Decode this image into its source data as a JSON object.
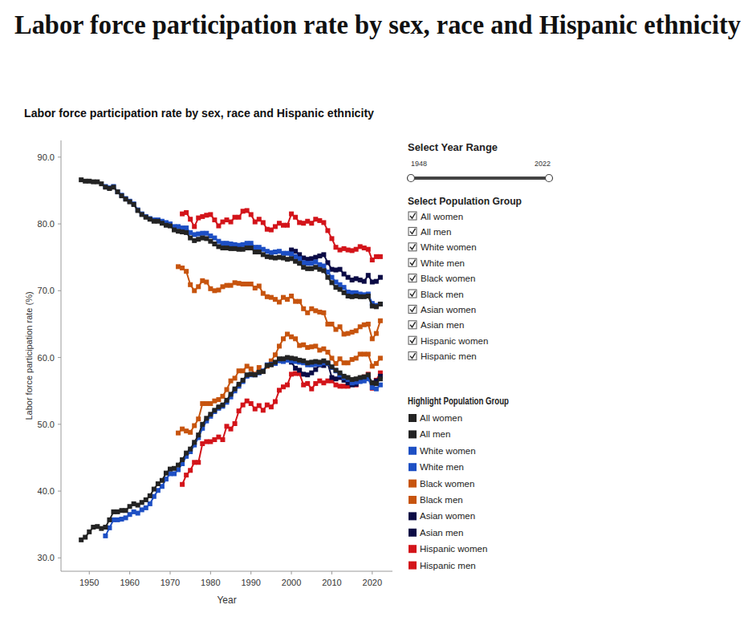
{
  "chart_data": {
    "type": "line",
    "page_title": "Labor force participation rate by sex, race and Hispanic ethnicity",
    "title": "Labor force participation rate by sex, race and Hispanic ethnicity",
    "x_label": "Year",
    "y_label": "Labor force participation rate (%)",
    "marker": "square",
    "grid": false,
    "controls": {
      "year_range_title": "Select Year Range",
      "year_range": [
        1948,
        2022
      ],
      "population_title": "Select Population Group",
      "highlight_title": "Highlight Population Group"
    },
    "xlim": [
      1943,
      2025
    ],
    "xticks": [
      1950,
      1960,
      1970,
      1980,
      1990,
      2000,
      2010,
      2020
    ],
    "ylim": [
      28,
      92.5
    ],
    "yticks": [
      {
        "value": 30,
        "label": "30.0"
      },
      {
        "value": 40,
        "label": "40.0"
      },
      {
        "value": 50,
        "label": "50.0"
      },
      {
        "value": 60,
        "label": "60.0"
      },
      {
        "value": 70,
        "label": "70.0"
      },
      {
        "value": 80,
        "label": "80.0"
      },
      {
        "value": 90,
        "label": "90.0"
      }
    ],
    "x": [
      1948,
      1949,
      1950,
      1951,
      1952,
      1953,
      1954,
      1955,
      1956,
      1957,
      1958,
      1959,
      1960,
      1961,
      1962,
      1963,
      1964,
      1965,
      1966,
      1967,
      1968,
      1969,
      1970,
      1971,
      1972,
      1973,
      1974,
      1975,
      1976,
      1977,
      1978,
      1979,
      1980,
      1981,
      1982,
      1983,
      1984,
      1985,
      1986,
      1987,
      1988,
      1989,
      1990,
      1991,
      1992,
      1993,
      1994,
      1995,
      1996,
      1997,
      1998,
      1999,
      2000,
      2001,
      2002,
      2003,
      2004,
      2005,
      2006,
      2007,
      2008,
      2009,
      2010,
      2011,
      2012,
      2013,
      2014,
      2015,
      2016,
      2017,
      2018,
      2019,
      2020,
      2021,
      2022
    ],
    "series": [
      {
        "name": "All women",
        "color": "#232323",
        "values": [
          32.7,
          33.1,
          33.9,
          34.6,
          34.7,
          34.4,
          34.6,
          35.7,
          36.9,
          36.9,
          37.1,
          37.1,
          37.7,
          38.1,
          37.9,
          38.3,
          38.7,
          39.3,
          40.3,
          41.1,
          41.6,
          42.7,
          43.3,
          43.4,
          43.9,
          44.7,
          45.7,
          46.3,
          47.3,
          48.4,
          50.0,
          50.9,
          51.5,
          52.1,
          52.6,
          52.9,
          53.6,
          54.5,
          55.3,
          56.0,
          56.6,
          57.4,
          57.5,
          57.4,
          57.8,
          57.9,
          58.8,
          58.9,
          59.3,
          59.8,
          59.8,
          60.0,
          59.9,
          59.8,
          59.6,
          59.5,
          59.2,
          59.3,
          59.4,
          59.3,
          59.5,
          59.2,
          58.6,
          58.1,
          57.7,
          57.2,
          57.0,
          56.7,
          56.8,
          57.0,
          57.1,
          57.4,
          56.2,
          56.1,
          56.8
        ]
      },
      {
        "name": "All men",
        "color": "#232323",
        "values": [
          86.6,
          86.4,
          86.4,
          86.3,
          86.3,
          86.0,
          85.5,
          85.3,
          85.5,
          84.8,
          84.2,
          83.7,
          83.3,
          82.9,
          82.0,
          81.4,
          81.0,
          80.7,
          80.4,
          80.4,
          80.1,
          79.8,
          79.7,
          79.1,
          78.9,
          78.8,
          78.7,
          77.9,
          77.5,
          77.7,
          77.9,
          77.8,
          77.4,
          77.0,
          76.6,
          76.4,
          76.4,
          76.3,
          76.3,
          76.2,
          76.2,
          76.4,
          76.4,
          75.8,
          75.8,
          75.4,
          75.1,
          75.0,
          74.9,
          75.0,
          74.9,
          74.7,
          74.8,
          74.4,
          74.1,
          73.5,
          73.3,
          73.3,
          73.5,
          73.2,
          73.0,
          72.0,
          71.2,
          70.5,
          70.2,
          69.7,
          69.2,
          69.1,
          69.2,
          69.1,
          69.1,
          69.2,
          67.7,
          67.6,
          68.0
        ]
      },
      {
        "name": "White women",
        "color": "#1d4fc4",
        "values": [
          null,
          null,
          null,
          null,
          null,
          null,
          33.3,
          34.5,
          35.7,
          35.7,
          35.8,
          36.0,
          36.5,
          36.9,
          36.7,
          37.2,
          37.5,
          38.1,
          39.2,
          40.1,
          40.7,
          41.8,
          42.6,
          42.6,
          43.2,
          44.1,
          45.2,
          45.9,
          46.9,
          48.0,
          49.4,
          50.5,
          51.2,
          51.9,
          52.4,
          52.7,
          53.3,
          54.1,
          55.0,
          55.7,
          56.4,
          57.2,
          57.4,
          57.4,
          57.7,
          58.0,
          58.9,
          59.0,
          59.1,
          59.5,
          59.4,
          59.6,
          59.5,
          59.4,
          59.3,
          59.2,
          58.9,
          58.9,
          59.0,
          59.0,
          59.2,
          59.1,
          58.5,
          58.0,
          57.4,
          57.0,
          56.7,
          56.2,
          56.3,
          56.4,
          56.5,
          56.8,
          55.5,
          55.3,
          55.9
        ]
      },
      {
        "name": "White men",
        "color": "#1d4fc4",
        "values": [
          null,
          null,
          null,
          null,
          null,
          null,
          85.6,
          85.4,
          85.6,
          84.8,
          84.3,
          83.8,
          83.4,
          83.0,
          82.1,
          81.5,
          81.1,
          80.8,
          80.6,
          80.6,
          80.4,
          80.2,
          80.0,
          79.6,
          79.6,
          79.4,
          79.4,
          78.7,
          78.4,
          78.5,
          78.6,
          78.6,
          78.2,
          77.9,
          77.4,
          77.1,
          77.1,
          77.0,
          76.9,
          76.8,
          76.9,
          77.1,
          77.1,
          76.5,
          76.5,
          76.2,
          75.9,
          75.7,
          75.8,
          75.9,
          75.6,
          75.6,
          75.5,
          75.1,
          74.8,
          74.2,
          74.1,
          74.1,
          74.3,
          73.9,
          73.7,
          72.8,
          72.0,
          71.3,
          70.9,
          70.5,
          69.8,
          69.7,
          69.7,
          69.5,
          69.4,
          69.5,
          68.1,
          67.8,
          68.0
        ]
      },
      {
        "name": "Black women",
        "color": "#c7540e",
        "values": [
          null,
          null,
          null,
          null,
          null,
          null,
          null,
          null,
          null,
          null,
          null,
          null,
          null,
          null,
          null,
          null,
          null,
          null,
          null,
          null,
          null,
          null,
          null,
          null,
          48.7,
          49.3,
          49.0,
          48.8,
          49.8,
          50.8,
          53.1,
          53.1,
          53.1,
          53.5,
          53.7,
          54.2,
          55.2,
          56.5,
          56.9,
          58.0,
          58.0,
          58.7,
          58.3,
          57.5,
          58.5,
          57.9,
          58.7,
          59.5,
          60.4,
          61.7,
          62.8,
          63.5,
          63.1,
          62.8,
          61.8,
          61.9,
          61.5,
          61.6,
          61.7,
          61.1,
          61.3,
          60.8,
          59.9,
          59.1,
          59.8,
          59.2,
          59.2,
          59.7,
          59.9,
          60.5,
          60.5,
          60.5,
          58.7,
          59.1,
          59.9
        ]
      },
      {
        "name": "Black men",
        "color": "#c7540e",
        "values": [
          null,
          null,
          null,
          null,
          null,
          null,
          null,
          null,
          null,
          null,
          null,
          null,
          null,
          null,
          null,
          null,
          null,
          null,
          null,
          null,
          null,
          null,
          null,
          null,
          73.6,
          73.4,
          72.9,
          70.9,
          70.0,
          70.6,
          71.5,
          71.3,
          70.3,
          70.0,
          70.1,
          70.6,
          70.8,
          70.8,
          71.2,
          71.1,
          71.0,
          71.0,
          71.0,
          70.4,
          70.7,
          69.6,
          69.1,
          69.0,
          68.7,
          68.3,
          69.0,
          68.7,
          69.2,
          68.4,
          68.4,
          67.3,
          66.7,
          67.3,
          67.0,
          66.8,
          66.7,
          65.0,
          65.0,
          64.2,
          64.6,
          63.5,
          63.6,
          63.8,
          64.0,
          64.6,
          64.9,
          65.0,
          62.8,
          63.6,
          65.5
        ]
      },
      {
        "name": "Asian women",
        "color": "#0b0b45",
        "values": [
          null,
          null,
          null,
          null,
          null,
          null,
          null,
          null,
          null,
          null,
          null,
          null,
          null,
          null,
          null,
          null,
          null,
          null,
          null,
          null,
          null,
          null,
          null,
          null,
          null,
          null,
          null,
          null,
          null,
          null,
          null,
          null,
          null,
          null,
          null,
          null,
          null,
          null,
          null,
          null,
          null,
          null,
          null,
          null,
          null,
          null,
          null,
          null,
          null,
          null,
          null,
          null,
          59.3,
          58.4,
          58.1,
          57.5,
          57.4,
          57.7,
          58.2,
          58.9,
          58.8,
          59.1,
          57.0,
          56.8,
          57.0,
          56.6,
          56.2,
          55.9,
          56.0,
          56.7,
          56.9,
          56.9,
          56.2,
          56.5,
          57.2
        ]
      },
      {
        "name": "Asian men",
        "color": "#0b0b45",
        "values": [
          null,
          null,
          null,
          null,
          null,
          null,
          null,
          null,
          null,
          null,
          null,
          null,
          null,
          null,
          null,
          null,
          null,
          null,
          null,
          null,
          null,
          null,
          null,
          null,
          null,
          null,
          null,
          null,
          null,
          null,
          null,
          null,
          null,
          null,
          null,
          null,
          null,
          null,
          null,
          null,
          null,
          null,
          null,
          null,
          null,
          null,
          null,
          null,
          null,
          null,
          null,
          null,
          76.1,
          75.9,
          75.4,
          74.9,
          74.7,
          74.8,
          75.0,
          75.2,
          75.4,
          74.2,
          73.2,
          73.1,
          73.2,
          72.5,
          72.0,
          71.6,
          71.8,
          71.6,
          71.4,
          72.3,
          71.3,
          71.4,
          72.0
        ]
      },
      {
        "name": "Hispanic women",
        "color": "#d3141a",
        "values": [
          null,
          null,
          null,
          null,
          null,
          null,
          null,
          null,
          null,
          null,
          null,
          null,
          null,
          null,
          null,
          null,
          null,
          null,
          null,
          null,
          null,
          null,
          null,
          null,
          null,
          41.0,
          42.4,
          43.1,
          44.3,
          44.3,
          47.1,
          47.4,
          47.4,
          47.7,
          48.1,
          47.7,
          49.7,
          49.3,
          50.1,
          52.0,
          52.9,
          53.5,
          53.1,
          52.3,
          52.8,
          52.1,
          52.9,
          52.6,
          53.4,
          55.1,
          55.6,
          55.9,
          57.5,
          57.6,
          57.6,
          55.9,
          56.1,
          55.3,
          56.1,
          56.5,
          56.2,
          56.5,
          56.5,
          55.9,
          55.7,
          55.7,
          55.7,
          56.0,
          55.9,
          56.7,
          57.1,
          57.5,
          55.4,
          56.6,
          57.7
        ]
      },
      {
        "name": "Hispanic men",
        "color": "#d3141a",
        "values": [
          null,
          null,
          null,
          null,
          null,
          null,
          null,
          null,
          null,
          null,
          null,
          null,
          null,
          null,
          null,
          null,
          null,
          null,
          null,
          null,
          null,
          null,
          null,
          null,
          null,
          81.5,
          81.7,
          80.7,
          79.6,
          80.9,
          81.1,
          81.3,
          81.4,
          80.6,
          79.7,
          80.3,
          80.6,
          80.3,
          81.0,
          81.0,
          81.9,
          82.0,
          81.4,
          80.3,
          80.7,
          80.2,
          79.2,
          79.1,
          79.6,
          80.1,
          79.8,
          79.8,
          81.5,
          81.0,
          80.2,
          80.1,
          80.4,
          80.1,
          80.7,
          80.5,
          80.2,
          79.0,
          77.8,
          76.5,
          76.1,
          76.3,
          76.1,
          76.0,
          76.2,
          76.6,
          76.4,
          76.2,
          74.6,
          75.1,
          75.1
        ]
      }
    ]
  }
}
